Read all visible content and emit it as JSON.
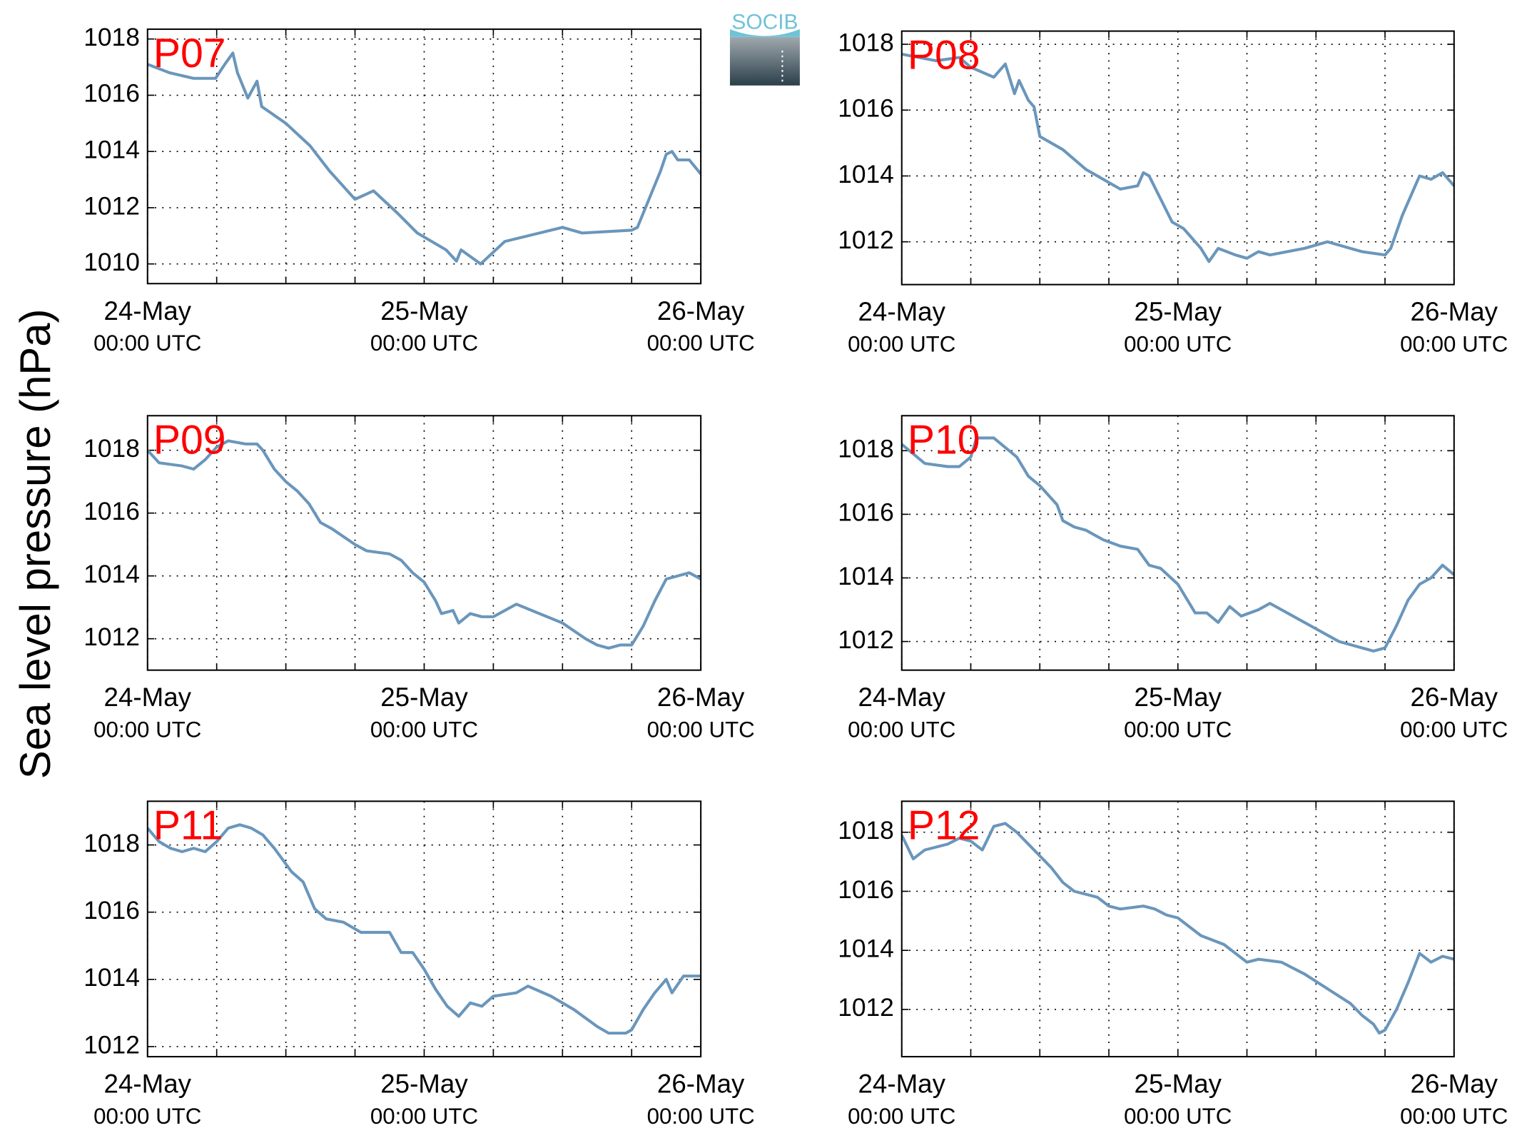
{
  "ylabel": "Sea level pressure (hPa)",
  "logo": "SOCIB",
  "chart_data": [
    {
      "type": "line",
      "title": "P07",
      "color": "#6a96bb",
      "xlim": [
        0,
        48
      ],
      "ylim": [
        1009.3,
        1018.35
      ],
      "xticks": [
        {
          "value": 0,
          "label": [
            "24-May",
            "00:00 UTC"
          ]
        },
        {
          "value": 24,
          "label": [
            "25-May",
            "00:00 UTC"
          ]
        },
        {
          "value": 48,
          "label": [
            "26-May",
            "00:00 UTC"
          ]
        }
      ],
      "xminor": [
        6,
        12,
        18,
        30,
        36,
        42
      ],
      "yticks": [
        1010,
        1012,
        1014,
        1016,
        1018
      ],
      "grid": true,
      "x": [
        0,
        1.9,
        4,
        5.9,
        6.7,
        7.4,
        7.8,
        8.7,
        9.5,
        9.9,
        12,
        14.1,
        15.8,
        18,
        19.6,
        21.7,
        23.4,
        25.9,
        26.8,
        27.2,
        28.9,
        31,
        36,
        37.7,
        42,
        42.5,
        43.5,
        44.5,
        45,
        45.5,
        46,
        47,
        48
      ],
      "values": [
        1017.1,
        1016.8,
        1016.6,
        1016.6,
        1017.1,
        1017.5,
        1016.8,
        1015.9,
        1016.5,
        1015.6,
        1015.0,
        1014.2,
        1013.3,
        1012.3,
        1012.6,
        1011.8,
        1011.1,
        1010.5,
        1010.1,
        1010.5,
        1010.0,
        1010.8,
        1011.3,
        1011.1,
        1011.2,
        1011.3,
        1012.3,
        1013.3,
        1013.9,
        1014.0,
        1013.7,
        1013.7,
        1013.2
      ]
    },
    {
      "type": "line",
      "title": "P08",
      "color": "#6a96bb",
      "xlim": [
        0,
        48
      ],
      "ylim": [
        1010.7,
        1018.4
      ],
      "xticks": [
        {
          "value": 0,
          "label": [
            "24-May",
            "00:00 UTC"
          ]
        },
        {
          "value": 24,
          "label": [
            "25-May",
            "00:00 UTC"
          ]
        },
        {
          "value": 48,
          "label": [
            "26-May",
            "00:00 UTC"
          ]
        }
      ],
      "xminor": [
        6,
        12,
        18,
        30,
        36,
        42
      ],
      "yticks": [
        1012,
        1014,
        1016,
        1018
      ],
      "grid": true,
      "x": [
        0,
        3,
        5,
        6,
        8,
        9,
        9.8,
        10.2,
        11,
        11.5,
        12,
        14,
        16,
        18,
        19,
        20.5,
        21,
        21.5,
        22.5,
        23.5,
        24.5,
        26,
        26.7,
        27.5,
        29,
        30,
        31,
        32,
        35,
        37,
        38,
        40,
        42,
        42.5,
        43.5,
        45,
        46,
        47,
        48
      ],
      "values": [
        1017.7,
        1017.5,
        1017.6,
        1017.3,
        1017.0,
        1017.4,
        1016.5,
        1016.9,
        1016.3,
        1016.1,
        1015.2,
        1014.8,
        1014.2,
        1013.8,
        1013.6,
        1013.7,
        1014.1,
        1014.0,
        1013.3,
        1012.6,
        1012.4,
        1011.8,
        1011.4,
        1011.8,
        1011.6,
        1011.5,
        1011.7,
        1011.6,
        1011.8,
        1012.0,
        1011.9,
        1011.7,
        1011.6,
        1011.8,
        1012.8,
        1014.0,
        1013.9,
        1014.1,
        1013.7
      ]
    },
    {
      "type": "line",
      "title": "P09",
      "color": "#6a96bb",
      "xlim": [
        0,
        48
      ],
      "ylim": [
        1011.0,
        1019.1
      ],
      "xticks": [
        {
          "value": 0,
          "label": [
            "24-May",
            "00:00 UTC"
          ]
        },
        {
          "value": 24,
          "label": [
            "25-May",
            "00:00 UTC"
          ]
        },
        {
          "value": 48,
          "label": [
            "26-May",
            "00:00 UTC"
          ]
        }
      ],
      "xminor": [
        6,
        12,
        18,
        30,
        36,
        42
      ],
      "yticks": [
        1012,
        1014,
        1016,
        1018
      ],
      "grid": true,
      "x": [
        0,
        1,
        3,
        4,
        5,
        6,
        7,
        8.5,
        9.5,
        10,
        11,
        12,
        13,
        14,
        15,
        16,
        18,
        19,
        21,
        22,
        23,
        24,
        25,
        25.5,
        26.5,
        27,
        28,
        29,
        30,
        31,
        32,
        34,
        36,
        38,
        39,
        40,
        41,
        42,
        43,
        44,
        45,
        46,
        47,
        48
      ],
      "values": [
        1018.0,
        1017.6,
        1017.5,
        1017.4,
        1017.7,
        1018.1,
        1018.3,
        1018.2,
        1018.2,
        1018.0,
        1017.4,
        1017.0,
        1016.7,
        1016.3,
        1015.7,
        1015.5,
        1015.0,
        1014.8,
        1014.7,
        1014.5,
        1014.1,
        1013.8,
        1013.2,
        1012.8,
        1012.9,
        1012.5,
        1012.8,
        1012.7,
        1012.7,
        1012.9,
        1013.1,
        1012.8,
        1012.5,
        1012.0,
        1011.8,
        1011.7,
        1011.8,
        1011.8,
        1012.4,
        1013.2,
        1013.9,
        1014.0,
        1014.1,
        1013.9
      ]
    },
    {
      "type": "line",
      "title": "P10",
      "color": "#6a96bb",
      "xlim": [
        0,
        48
      ],
      "ylim": [
        1011.1,
        1019.1
      ],
      "xticks": [
        {
          "value": 0,
          "label": [
            "24-May",
            "00:00 UTC"
          ]
        },
        {
          "value": 24,
          "label": [
            "25-May",
            "00:00 UTC"
          ]
        },
        {
          "value": 48,
          "label": [
            "26-May",
            "00:00 UTC"
          ]
        }
      ],
      "xminor": [
        6,
        12,
        18,
        30,
        36,
        42
      ],
      "yticks": [
        1012,
        1014,
        1016,
        1018
      ],
      "grid": true,
      "x": [
        0,
        1,
        2,
        4,
        5,
        6,
        6.5,
        8,
        9,
        10,
        11,
        12,
        13.5,
        14,
        15,
        16,
        17.5,
        19,
        20.5,
        21.5,
        22.5,
        24,
        25,
        25.5,
        26.5,
        27.5,
        28.5,
        29.5,
        31,
        32,
        34,
        36,
        38,
        40,
        41,
        42,
        43,
        44,
        45,
        46,
        47,
        48
      ],
      "values": [
        1018.2,
        1017.9,
        1017.6,
        1017.5,
        1017.5,
        1017.8,
        1018.4,
        1018.4,
        1018.1,
        1017.8,
        1017.2,
        1016.9,
        1016.3,
        1015.8,
        1015.6,
        1015.5,
        1015.2,
        1015.0,
        1014.9,
        1014.4,
        1014.3,
        1013.8,
        1013.2,
        1012.9,
        1012.9,
        1012.6,
        1013.1,
        1012.8,
        1013.0,
        1013.2,
        1012.8,
        1012.4,
        1012.0,
        1011.8,
        1011.7,
        1011.8,
        1012.5,
        1013.3,
        1013.8,
        1014.0,
        1014.4,
        1014.1
      ]
    },
    {
      "type": "line",
      "title": "P11",
      "color": "#6a96bb",
      "xlim": [
        0,
        48
      ],
      "ylim": [
        1011.7,
        1019.3
      ],
      "xticks": [
        {
          "value": 0,
          "label": [
            "24-May",
            "00:00 UTC"
          ]
        },
        {
          "value": 24,
          "label": [
            "25-May",
            "00:00 UTC"
          ]
        },
        {
          "value": 48,
          "label": [
            "26-May",
            "00:00 UTC"
          ]
        }
      ],
      "xminor": [
        6,
        12,
        18,
        30,
        36,
        42
      ],
      "yticks": [
        1012,
        1014,
        1016,
        1018
      ],
      "grid": true,
      "x": [
        0,
        1,
        2,
        3,
        4,
        5,
        6,
        7,
        8,
        9,
        10,
        11,
        12.5,
        13.5,
        14.5,
        15.5,
        17,
        18.5,
        19.5,
        21,
        22,
        23,
        24,
        25,
        26,
        27,
        28,
        29,
        30,
        32,
        33,
        35,
        37,
        39,
        40,
        41.5,
        42,
        43,
        44,
        45,
        45.5,
        46.5,
        48
      ],
      "values": [
        1018.5,
        1018.1,
        1017.9,
        1017.8,
        1017.9,
        1017.8,
        1018.1,
        1018.5,
        1018.6,
        1018.5,
        1018.3,
        1017.9,
        1017.2,
        1016.9,
        1016.1,
        1015.8,
        1015.7,
        1015.4,
        1015.4,
        1015.4,
        1014.8,
        1014.8,
        1014.3,
        1013.7,
        1013.2,
        1012.9,
        1013.3,
        1013.2,
        1013.5,
        1013.6,
        1013.8,
        1013.5,
        1013.1,
        1012.6,
        1012.4,
        1012.4,
        1012.5,
        1013.1,
        1013.6,
        1014.0,
        1013.6,
        1014.1,
        1014.1
      ]
    },
    {
      "type": "line",
      "title": "P12",
      "color": "#6a96bb",
      "xlim": [
        0,
        48
      ],
      "ylim": [
        1010.4,
        1019.05
      ],
      "xticks": [
        {
          "value": 0,
          "label": [
            "24-May",
            "00:00 UTC"
          ]
        },
        {
          "value": 24,
          "label": [
            "25-May",
            "00:00 UTC"
          ]
        },
        {
          "value": 48,
          "label": [
            "26-May",
            "00:00 UTC"
          ]
        }
      ],
      "xminor": [
        6,
        12,
        18,
        30,
        36,
        42
      ],
      "yticks": [
        1012,
        1014,
        1016,
        1018
      ],
      "grid": true,
      "x": [
        0,
        1,
        2,
        4,
        5,
        6,
        7,
        8,
        9,
        10,
        11,
        12,
        13,
        14,
        15,
        17,
        18,
        19,
        21,
        22,
        23,
        24,
        25,
        26,
        28,
        29,
        30,
        31,
        33,
        35,
        37,
        39,
        40,
        41,
        41.5,
        42,
        43,
        44,
        45,
        46,
        47,
        48
      ],
      "values": [
        1017.9,
        1017.1,
        1017.4,
        1017.6,
        1017.8,
        1017.7,
        1017.4,
        1018.2,
        1018.3,
        1018.0,
        1017.6,
        1017.2,
        1016.8,
        1016.3,
        1016.0,
        1015.8,
        1015.5,
        1015.4,
        1015.5,
        1015.4,
        1015.2,
        1015.1,
        1014.8,
        1014.5,
        1014.2,
        1013.9,
        1013.6,
        1013.7,
        1013.6,
        1013.2,
        1012.7,
        1012.2,
        1011.8,
        1011.5,
        1011.2,
        1011.3,
        1012.0,
        1012.9,
        1013.9,
        1013.6,
        1013.8,
        1013.7
      ]
    }
  ]
}
